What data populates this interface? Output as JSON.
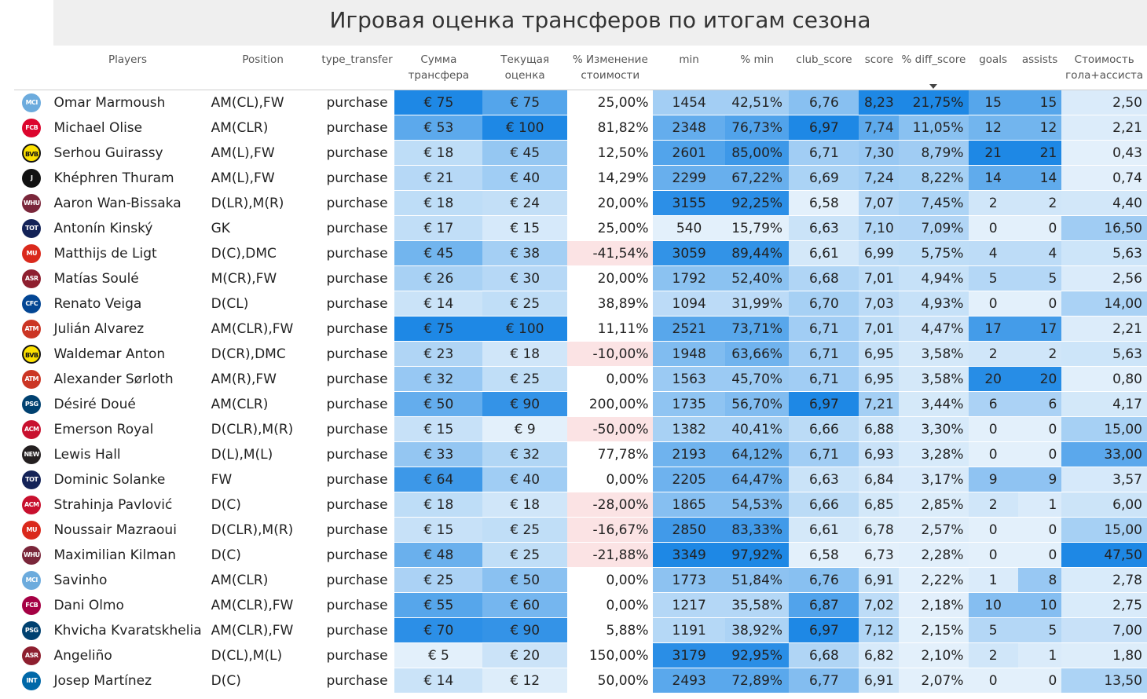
{
  "title": "Игровая оценка трансферов по итогам сезона",
  "columns": [
    {
      "key": "logo",
      "label": ""
    },
    {
      "key": "player",
      "label": "Players"
    },
    {
      "key": "position",
      "label": "Position"
    },
    {
      "key": "type",
      "label": "type_transfer"
    },
    {
      "key": "fee",
      "label": "Сумма трансфера"
    },
    {
      "key": "value",
      "label": "Текущая оценка"
    },
    {
      "key": "change",
      "label": "% Изменение стоимости"
    },
    {
      "key": "min",
      "label": "min"
    },
    {
      "key": "min_pct",
      "label": "% min"
    },
    {
      "key": "club_score",
      "label": "club_score"
    },
    {
      "key": "score",
      "label": "score"
    },
    {
      "key": "diff",
      "label": "% diff_score"
    },
    {
      "key": "goals",
      "label": "goals"
    },
    {
      "key": "assists",
      "label": "assists"
    },
    {
      "key": "cost_ga",
      "label": "Стоимость гола+ассиста"
    }
  ],
  "sort": {
    "column": "diff",
    "direction": "desc",
    "icon": "sort-descending-icon"
  },
  "colors": {
    "dark_blue": "#1e88e5",
    "light_blue": "#e3f0fb",
    "negative": "#fbe3e4"
  },
  "rows": [
    {
      "club": "Manchester City",
      "abbr": "MCI",
      "badge": "#6cabdd",
      "player": "Omar Marmoush",
      "position": "AM(CL),FW",
      "type": "purchase",
      "fee": "€ 75",
      "value": "€ 75",
      "change": "25,00%",
      "min": "1454",
      "min_pct": "42,51%",
      "club_score": "6,76",
      "score": "8,23",
      "diff": "21,75%",
      "goals": "15",
      "assists": "15",
      "cost_ga": "2,50"
    },
    {
      "club": "Bayern Munich",
      "abbr": "FCB",
      "badge": "#dc052d",
      "player": "Michael Olise",
      "position": "AM(CLR)",
      "type": "purchase",
      "fee": "€ 53",
      "value": "€ 100",
      "change": "81,82%",
      "min": "2348",
      "min_pct": "76,73%",
      "club_score": "6,97",
      "score": "7,74",
      "diff": "11,05%",
      "goals": "12",
      "assists": "12",
      "cost_ga": "2,21"
    },
    {
      "club": "Borussia Dortmund",
      "abbr": "BVB",
      "badge": "#fde100",
      "player": "Serhou Guirassy",
      "position": "AM(L),FW",
      "type": "purchase",
      "fee": "€ 18",
      "value": "€ 45",
      "change": "12,50%",
      "min": "2601",
      "min_pct": "85,00%",
      "club_score": "6,71",
      "score": "7,30",
      "diff": "8,79%",
      "goals": "21",
      "assists": "21",
      "cost_ga": "0,43"
    },
    {
      "club": "Juventus",
      "abbr": "J",
      "badge": "#111111",
      "player": "Khéphren Thuram",
      "position": "AM(L),FW",
      "type": "purchase",
      "fee": "€ 21",
      "value": "€ 40",
      "change": "14,29%",
      "min": "2299",
      "min_pct": "67,22%",
      "club_score": "6,69",
      "score": "7,24",
      "diff": "8,22%",
      "goals": "14",
      "assists": "14",
      "cost_ga": "0,74"
    },
    {
      "club": "West Ham",
      "abbr": "WHU",
      "badge": "#7a263a",
      "player": "Aaron Wan-Bissaka",
      "position": "D(LR),M(R)",
      "type": "purchase",
      "fee": "€ 18",
      "value": "€ 24",
      "change": "20,00%",
      "min": "3155",
      "min_pct": "92,25%",
      "club_score": "6,58",
      "score": "7,07",
      "diff": "7,45%",
      "goals": "2",
      "assists": "2",
      "cost_ga": "4,40"
    },
    {
      "club": "Tottenham",
      "abbr": "TOT",
      "badge": "#132257",
      "player": "Antonín Kinský",
      "position": "GK",
      "type": "purchase",
      "fee": "€ 17",
      "value": "€ 15",
      "change": "25,00%",
      "min": "540",
      "min_pct": "15,79%",
      "club_score": "6,63",
      "score": "7,10",
      "diff": "7,09%",
      "goals": "0",
      "assists": "0",
      "cost_ga": "16,50"
    },
    {
      "club": "Manchester United",
      "abbr": "MU",
      "badge": "#da291c",
      "player": "Matthijs de Ligt",
      "position": "D(C),DMC",
      "type": "purchase",
      "fee": "€ 45",
      "value": "€ 38",
      "change": "-41,54%",
      "min": "3059",
      "min_pct": "89,44%",
      "club_score": "6,61",
      "score": "6,99",
      "diff": "5,75%",
      "goals": "4",
      "assists": "4",
      "cost_ga": "5,63"
    },
    {
      "club": "Roma",
      "abbr": "ASR",
      "badge": "#8e1f2f",
      "player": "Matías Soulé",
      "position": "M(CR),FW",
      "type": "purchase",
      "fee": "€ 26",
      "value": "€ 30",
      "change": "20,00%",
      "min": "1792",
      "min_pct": "52,40%",
      "club_score": "6,68",
      "score": "7,01",
      "diff": "4,94%",
      "goals": "5",
      "assists": "5",
      "cost_ga": "2,56"
    },
    {
      "club": "Chelsea",
      "abbr": "CFC",
      "badge": "#034694",
      "player": "Renato Veiga",
      "position": "D(CL)",
      "type": "purchase",
      "fee": "€ 14",
      "value": "€ 25",
      "change": "38,89%",
      "min": "1094",
      "min_pct": "31,99%",
      "club_score": "6,70",
      "score": "7,03",
      "diff": "4,93%",
      "goals": "0",
      "assists": "0",
      "cost_ga": "14,00"
    },
    {
      "club": "Atletico Madrid",
      "abbr": "ATM",
      "badge": "#cb3524",
      "player": "Julián Alvarez",
      "position": "AM(CLR),FW",
      "type": "purchase",
      "fee": "€ 75",
      "value": "€ 100",
      "change": "11,11%",
      "min": "2521",
      "min_pct": "73,71%",
      "club_score": "6,71",
      "score": "7,01",
      "diff": "4,47%",
      "goals": "17",
      "assists": "17",
      "cost_ga": "2,21"
    },
    {
      "club": "Borussia Dortmund",
      "abbr": "BVB",
      "badge": "#fde100",
      "player": "Waldemar Anton",
      "position": "D(CR),DMC",
      "type": "purchase",
      "fee": "€ 23",
      "value": "€ 18",
      "change": "-10,00%",
      "min": "1948",
      "min_pct": "63,66%",
      "club_score": "6,71",
      "score": "6,95",
      "diff": "3,58%",
      "goals": "2",
      "assists": "2",
      "cost_ga": "5,63"
    },
    {
      "club": "Atletico Madrid",
      "abbr": "ATM",
      "badge": "#cb3524",
      "player": "Alexander Sørloth",
      "position": "AM(R),FW",
      "type": "purchase",
      "fee": "€ 32",
      "value": "€ 25",
      "change": "0,00%",
      "min": "1563",
      "min_pct": "45,70%",
      "club_score": "6,71",
      "score": "6,95",
      "diff": "3,58%",
      "goals": "20",
      "assists": "20",
      "cost_ga": "0,80"
    },
    {
      "club": "Paris Saint-Germain",
      "abbr": "PSG",
      "badge": "#004170",
      "player": "Désiré Doué",
      "position": "AM(CLR)",
      "type": "purchase",
      "fee": "€ 50",
      "value": "€ 90",
      "change": "200,00%",
      "min": "1735",
      "min_pct": "56,70%",
      "club_score": "6,97",
      "score": "7,21",
      "diff": "3,44%",
      "goals": "6",
      "assists": "6",
      "cost_ga": "4,17"
    },
    {
      "club": "AC Milan",
      "abbr": "ACM",
      "badge": "#c8102e",
      "player": "Emerson Royal",
      "position": "D(CLR),M(R)",
      "type": "purchase",
      "fee": "€ 15",
      "value": "€ 9",
      "change": "-50,00%",
      "min": "1382",
      "min_pct": "40,41%",
      "club_score": "6,66",
      "score": "6,88",
      "diff": "3,30%",
      "goals": "0",
      "assists": "0",
      "cost_ga": "15,00"
    },
    {
      "club": "Newcastle",
      "abbr": "NEW",
      "badge": "#241f20",
      "player": "Lewis Hall",
      "position": "D(L),M(L)",
      "type": "purchase",
      "fee": "€ 33",
      "value": "€ 32",
      "change": "77,78%",
      "min": "2193",
      "min_pct": "64,12%",
      "club_score": "6,71",
      "score": "6,93",
      "diff": "3,28%",
      "goals": "0",
      "assists": "0",
      "cost_ga": "33,00"
    },
    {
      "club": "Tottenham",
      "abbr": "TOT",
      "badge": "#132257",
      "player": "Dominic Solanke",
      "position": "FW",
      "type": "purchase",
      "fee": "€ 64",
      "value": "€ 40",
      "change": "0,00%",
      "min": "2205",
      "min_pct": "64,47%",
      "club_score": "6,63",
      "score": "6,84",
      "diff": "3,17%",
      "goals": "9",
      "assists": "9",
      "cost_ga": "3,57"
    },
    {
      "club": "AC Milan",
      "abbr": "ACM",
      "badge": "#c8102e",
      "player": "Strahinja Pavlović",
      "position": "D(C)",
      "type": "purchase",
      "fee": "€ 18",
      "value": "€ 18",
      "change": "-28,00%",
      "min": "1865",
      "min_pct": "54,53%",
      "club_score": "6,66",
      "score": "6,85",
      "diff": "2,85%",
      "goals": "2",
      "assists": "1",
      "cost_ga": "6,00"
    },
    {
      "club": "Manchester United",
      "abbr": "MU",
      "badge": "#da291c",
      "player": "Noussair Mazraoui",
      "position": "D(CLR),M(R)",
      "type": "purchase",
      "fee": "€ 15",
      "value": "€ 25",
      "change": "-16,67%",
      "min": "2850",
      "min_pct": "83,33%",
      "club_score": "6,61",
      "score": "6,78",
      "diff": "2,57%",
      "goals": "0",
      "assists": "0",
      "cost_ga": "15,00"
    },
    {
      "club": "West Ham",
      "abbr": "WHU",
      "badge": "#7a263a",
      "player": "Maximilian Kilman",
      "position": "D(C)",
      "type": "purchase",
      "fee": "€ 48",
      "value": "€ 25",
      "change": "-21,88%",
      "min": "3349",
      "min_pct": "97,92%",
      "club_score": "6,58",
      "score": "6,73",
      "diff": "2,28%",
      "goals": "0",
      "assists": "0",
      "cost_ga": "47,50"
    },
    {
      "club": "Manchester City",
      "abbr": "MCI",
      "badge": "#6cabdd",
      "player": "Savinho",
      "position": "AM(CLR)",
      "type": "purchase",
      "fee": "€ 25",
      "value": "€ 50",
      "change": "0,00%",
      "min": "1773",
      "min_pct": "51,84%",
      "club_score": "6,76",
      "score": "6,91",
      "diff": "2,22%",
      "goals": "1",
      "assists": "8",
      "cost_ga": "2,78"
    },
    {
      "club": "Barcelona",
      "abbr": "FCB",
      "badge": "#a50044",
      "player": "Dani Olmo",
      "position": "AM(CLR),FW",
      "type": "purchase",
      "fee": "€ 55",
      "value": "€ 60",
      "change": "0,00%",
      "min": "1217",
      "min_pct": "35,58%",
      "club_score": "6,87",
      "score": "7,02",
      "diff": "2,18%",
      "goals": "10",
      "assists": "10",
      "cost_ga": "2,75"
    },
    {
      "club": "Paris Saint-Germain",
      "abbr": "PSG",
      "badge": "#004170",
      "player": "Khvicha Kvaratskhelia",
      "position": "AM(CLR),FW",
      "type": "purchase",
      "fee": "€ 70",
      "value": "€ 90",
      "change": "5,88%",
      "min": "1191",
      "min_pct": "38,92%",
      "club_score": "6,97",
      "score": "7,12",
      "diff": "2,15%",
      "goals": "5",
      "assists": "5",
      "cost_ga": "7,00"
    },
    {
      "club": "Roma",
      "abbr": "ASR",
      "badge": "#8e1f2f",
      "player": "Angeliño",
      "position": "D(CL),M(L)",
      "type": "purchase",
      "fee": "€ 5",
      "value": "€ 20",
      "change": "150,00%",
      "min": "3179",
      "min_pct": "92,95%",
      "club_score": "6,68",
      "score": "6,82",
      "diff": "2,10%",
      "goals": "2",
      "assists": "1",
      "cost_ga": "1,80"
    },
    {
      "club": "Inter",
      "abbr": "INT",
      "badge": "#0068a8",
      "player": "Josep Martínez",
      "position": "D(C)",
      "type": "purchase",
      "fee": "€ 14",
      "value": "€ 12",
      "change": "50,00%",
      "min": "2493",
      "min_pct": "72,89%",
      "club_score": "6,77",
      "score": "6,91",
      "diff": "2,07%",
      "goals": "0",
      "assists": "0",
      "cost_ga": "13,50"
    }
  ]
}
